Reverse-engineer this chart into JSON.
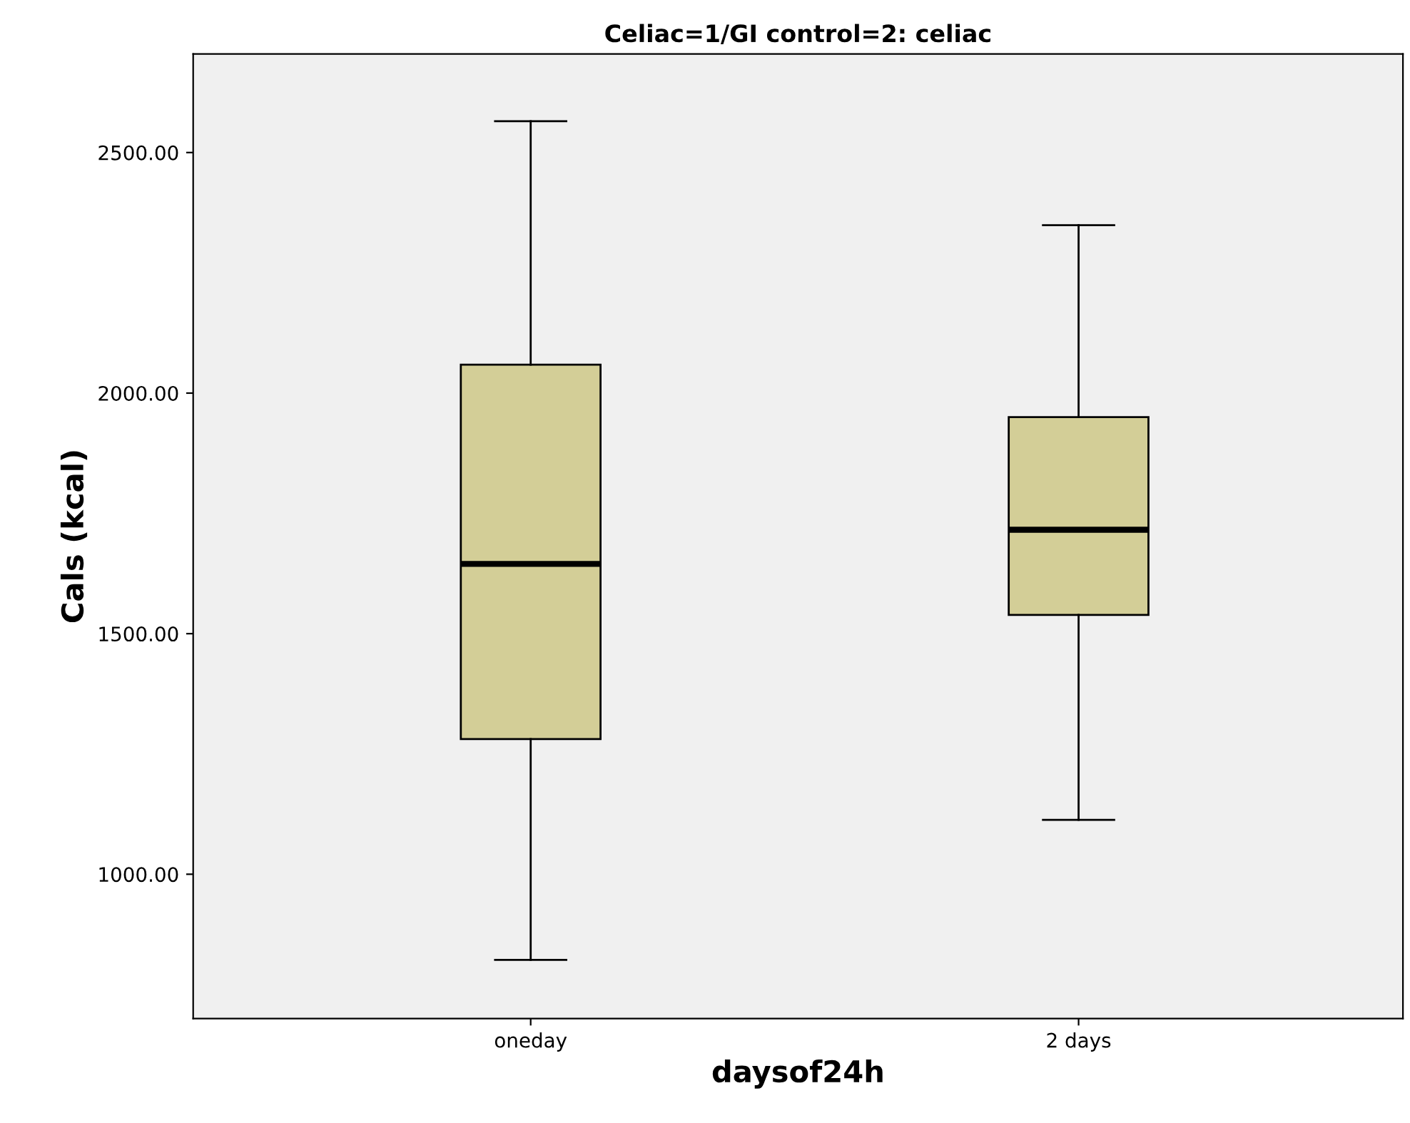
{
  "chart_data": {
    "type": "box",
    "title": "Celiac=1/GI control=2: celiac",
    "xlabel": "daysof24h",
    "ylabel": "Cals (kcal)",
    "categories": [
      "oneday",
      "2 days"
    ],
    "boxes": [
      {
        "low": 822,
        "q1": 1281,
        "median": 1645,
        "q3": 2059,
        "high": 2565
      },
      {
        "low": 1113,
        "q1": 1539,
        "median": 1716,
        "q3": 1950,
        "high": 2349
      }
    ],
    "color": "#d3ce97",
    "ylim": [
      700,
      2705
    ],
    "yticks": [
      {
        "value": 1000,
        "label": "1000.00"
      },
      {
        "value": 1500,
        "label": "1500.00"
      },
      {
        "value": 2000,
        "label": "2000.00"
      },
      {
        "value": 2500,
        "label": "2500.00"
      }
    ],
    "grid": false,
    "legend": false
  }
}
